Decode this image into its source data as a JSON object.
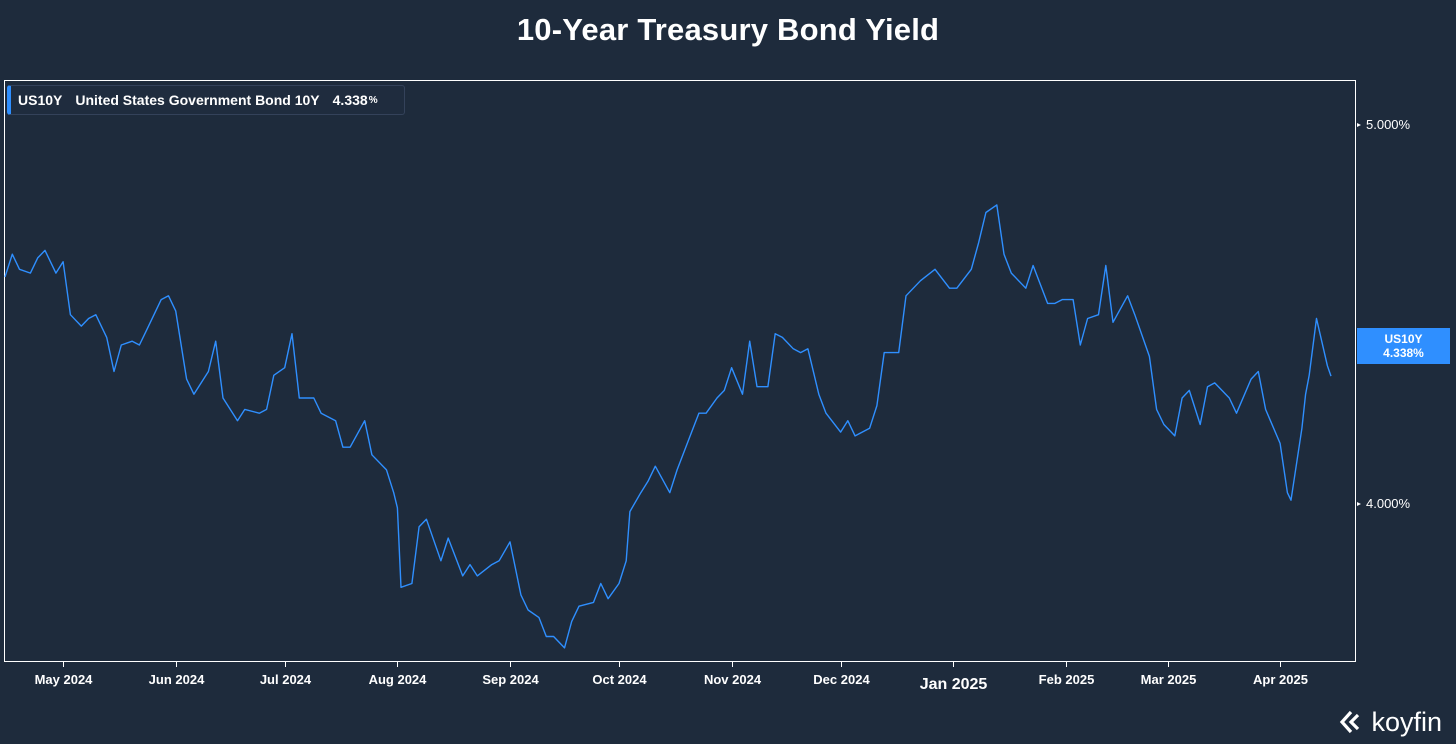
{
  "title": "10-Year Treasury Bond Yield",
  "legend": {
    "symbol": "US10Y",
    "name": "United States Government Bond 10Y",
    "value": "4.338",
    "unit": "%"
  },
  "price_tag": {
    "symbol": "US10Y",
    "value": "4.338%"
  },
  "brand": "koyfin",
  "colors": {
    "background": "#1e2b3c",
    "line": "#2f8fff",
    "frame": "#ffffff",
    "text": "#ffffff"
  },
  "chart_data": {
    "type": "line",
    "title": "10-Year Treasury Bond Yield",
    "xlabel": "",
    "ylabel": "",
    "x_range": [
      "2024-04-15",
      "2025-04-15"
    ],
    "ylim": [
      3.5853,
      5.1174
    ],
    "y_ticks": [
      {
        "value": 5.0,
        "label": "5.000%"
      },
      {
        "value": 4.0,
        "label": "4.000%"
      }
    ],
    "x_ticks": [
      {
        "date": "2024-05-01",
        "label": "May 2024",
        "major": false
      },
      {
        "date": "2024-06-01",
        "label": "Jun 2024",
        "major": false
      },
      {
        "date": "2024-07-01",
        "label": "Jul 2024",
        "major": false
      },
      {
        "date": "2024-08-01",
        "label": "Aug 2024",
        "major": false
      },
      {
        "date": "2024-09-01",
        "label": "Sep 2024",
        "major": false
      },
      {
        "date": "2024-10-01",
        "label": "Oct 2024",
        "major": false
      },
      {
        "date": "2024-11-01",
        "label": "Nov 2024",
        "major": false
      },
      {
        "date": "2024-12-01",
        "label": "Dec 2024",
        "major": false
      },
      {
        "date": "2025-01-01",
        "label": "Jan 2025",
        "major": true
      },
      {
        "date": "2025-02-01",
        "label": "Feb 2025",
        "major": false
      },
      {
        "date": "2025-03-01",
        "label": "Mar 2025",
        "major": false
      },
      {
        "date": "2025-04-01",
        "label": "Apr 2025",
        "major": false
      }
    ],
    "grid": false,
    "legend_position": "top-left",
    "series": [
      {
        "name": "US10Y",
        "color": "#2f8fff",
        "points": [
          [
            "2024-04-15",
            4.6
          ],
          [
            "2024-04-17",
            4.66
          ],
          [
            "2024-04-19",
            4.62
          ],
          [
            "2024-04-22",
            4.61
          ],
          [
            "2024-04-24",
            4.65
          ],
          [
            "2024-04-26",
            4.67
          ],
          [
            "2024-04-29",
            4.61
          ],
          [
            "2024-05-01",
            4.64
          ],
          [
            "2024-05-03",
            4.5
          ],
          [
            "2024-05-06",
            4.47
          ],
          [
            "2024-05-08",
            4.49
          ],
          [
            "2024-05-10",
            4.5
          ],
          [
            "2024-05-13",
            4.44
          ],
          [
            "2024-05-15",
            4.35
          ],
          [
            "2024-05-17",
            4.42
          ],
          [
            "2024-05-20",
            4.43
          ],
          [
            "2024-05-22",
            4.42
          ],
          [
            "2024-05-24",
            4.46
          ],
          [
            "2024-05-28",
            4.54
          ],
          [
            "2024-05-30",
            4.55
          ],
          [
            "2024-06-01",
            4.51
          ],
          [
            "2024-06-04",
            4.33
          ],
          [
            "2024-06-06",
            4.29
          ],
          [
            "2024-06-10",
            4.35
          ],
          [
            "2024-06-12",
            4.43
          ],
          [
            "2024-06-14",
            4.28
          ],
          [
            "2024-06-18",
            4.22
          ],
          [
            "2024-06-20",
            4.25
          ],
          [
            "2024-06-24",
            4.24
          ],
          [
            "2024-06-26",
            4.25
          ],
          [
            "2024-06-28",
            4.34
          ],
          [
            "2024-07-01",
            4.36
          ],
          [
            "2024-07-03",
            4.45
          ],
          [
            "2024-07-05",
            4.28
          ],
          [
            "2024-07-09",
            4.28
          ],
          [
            "2024-07-11",
            4.24
          ],
          [
            "2024-07-15",
            4.22
          ],
          [
            "2024-07-17",
            4.15
          ],
          [
            "2024-07-19",
            4.15
          ],
          [
            "2024-07-23",
            4.22
          ],
          [
            "2024-07-25",
            4.13
          ],
          [
            "2024-07-29",
            4.09
          ],
          [
            "2024-07-31",
            4.03
          ],
          [
            "2024-08-01",
            3.99
          ],
          [
            "2024-08-02",
            3.78
          ],
          [
            "2024-08-05",
            3.79
          ],
          [
            "2024-08-07",
            3.94
          ],
          [
            "2024-08-09",
            3.96
          ],
          [
            "2024-08-13",
            3.85
          ],
          [
            "2024-08-15",
            3.91
          ],
          [
            "2024-08-19",
            3.81
          ],
          [
            "2024-08-21",
            3.84
          ],
          [
            "2024-08-23",
            3.81
          ],
          [
            "2024-08-27",
            3.84
          ],
          [
            "2024-08-29",
            3.85
          ],
          [
            "2024-09-01",
            3.9
          ],
          [
            "2024-09-04",
            3.76
          ],
          [
            "2024-09-06",
            3.72
          ],
          [
            "2024-09-09",
            3.7
          ],
          [
            "2024-09-11",
            3.65
          ],
          [
            "2024-09-13",
            3.65
          ],
          [
            "2024-09-16",
            3.62
          ],
          [
            "2024-09-18",
            3.69
          ],
          [
            "2024-09-20",
            3.73
          ],
          [
            "2024-09-24",
            3.74
          ],
          [
            "2024-09-26",
            3.79
          ],
          [
            "2024-09-28",
            3.75
          ],
          [
            "2024-10-01",
            3.79
          ],
          [
            "2024-10-03",
            3.85
          ],
          [
            "2024-10-04",
            3.98
          ],
          [
            "2024-10-07",
            4.03
          ],
          [
            "2024-10-09",
            4.06
          ],
          [
            "2024-10-11",
            4.1
          ],
          [
            "2024-10-15",
            4.03
          ],
          [
            "2024-10-17",
            4.09
          ],
          [
            "2024-10-21",
            4.19
          ],
          [
            "2024-10-23",
            4.24
          ],
          [
            "2024-10-25",
            4.24
          ],
          [
            "2024-10-28",
            4.28
          ],
          [
            "2024-10-30",
            4.3
          ],
          [
            "2024-11-01",
            4.36
          ],
          [
            "2024-11-04",
            4.29
          ],
          [
            "2024-11-06",
            4.43
          ],
          [
            "2024-11-08",
            4.31
          ],
          [
            "2024-11-11",
            4.31
          ],
          [
            "2024-11-13",
            4.45
          ],
          [
            "2024-11-15",
            4.44
          ],
          [
            "2024-11-18",
            4.41
          ],
          [
            "2024-11-20",
            4.4
          ],
          [
            "2024-11-22",
            4.41
          ],
          [
            "2024-11-25",
            4.29
          ],
          [
            "2024-11-27",
            4.24
          ],
          [
            "2024-12-01",
            4.19
          ],
          [
            "2024-12-03",
            4.22
          ],
          [
            "2024-12-05",
            4.18
          ],
          [
            "2024-12-09",
            4.2
          ],
          [
            "2024-12-11",
            4.26
          ],
          [
            "2024-12-13",
            4.4
          ],
          [
            "2024-12-17",
            4.4
          ],
          [
            "2024-12-19",
            4.55
          ],
          [
            "2024-12-23",
            4.59
          ],
          [
            "2024-12-27",
            4.62
          ],
          [
            "2024-12-31",
            4.57
          ],
          [
            "2025-01-02",
            4.57
          ],
          [
            "2025-01-06",
            4.62
          ],
          [
            "2025-01-08",
            4.69
          ],
          [
            "2025-01-10",
            4.77
          ],
          [
            "2025-01-13",
            4.79
          ],
          [
            "2025-01-15",
            4.66
          ],
          [
            "2025-01-17",
            4.61
          ],
          [
            "2025-01-21",
            4.57
          ],
          [
            "2025-01-23",
            4.63
          ],
          [
            "2025-01-27",
            4.53
          ],
          [
            "2025-01-29",
            4.53
          ],
          [
            "2025-01-31",
            4.54
          ],
          [
            "2025-02-03",
            4.54
          ],
          [
            "2025-02-05",
            4.42
          ],
          [
            "2025-02-07",
            4.49
          ],
          [
            "2025-02-10",
            4.5
          ],
          [
            "2025-02-12",
            4.63
          ],
          [
            "2025-02-14",
            4.48
          ],
          [
            "2025-02-18",
            4.55
          ],
          [
            "2025-02-20",
            4.5
          ],
          [
            "2025-02-24",
            4.39
          ],
          [
            "2025-02-26",
            4.25
          ],
          [
            "2025-02-28",
            4.21
          ],
          [
            "2025-03-03",
            4.18
          ],
          [
            "2025-03-05",
            4.28
          ],
          [
            "2025-03-07",
            4.3
          ],
          [
            "2025-03-10",
            4.21
          ],
          [
            "2025-03-12",
            4.31
          ],
          [
            "2025-03-14",
            4.32
          ],
          [
            "2025-03-18",
            4.28
          ],
          [
            "2025-03-20",
            4.24
          ],
          [
            "2025-03-24",
            4.33
          ],
          [
            "2025-03-26",
            4.35
          ],
          [
            "2025-03-28",
            4.25
          ],
          [
            "2025-04-01",
            4.16
          ],
          [
            "2025-04-03",
            4.03
          ],
          [
            "2025-04-04",
            4.01
          ],
          [
            "2025-04-07",
            4.2
          ],
          [
            "2025-04-08",
            4.29
          ],
          [
            "2025-04-09",
            4.34
          ],
          [
            "2025-04-11",
            4.49
          ],
          [
            "2025-04-14",
            4.365
          ],
          [
            "2025-04-15",
            4.338
          ]
        ]
      }
    ]
  }
}
